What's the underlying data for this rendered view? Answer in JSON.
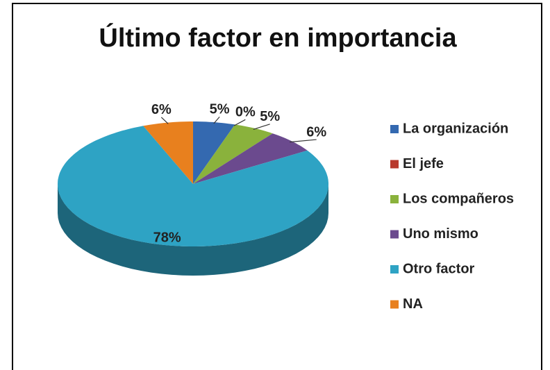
{
  "chart_data": {
    "type": "pie",
    "title": "Último factor en importancia",
    "categories": [
      "La organización",
      "El jefe",
      "Los compañeros",
      "Uno mismo",
      "Otro factor",
      "NA"
    ],
    "values": [
      5,
      0,
      5,
      6,
      78,
      6
    ],
    "value_labels": [
      "5%",
      "0%",
      "5%",
      "6%",
      "78%",
      "6%"
    ],
    "colors": [
      "#3469b0",
      "#b83a2e",
      "#8ab23c",
      "#6b4a8e",
      "#2ea3c4",
      "#e8801e"
    ],
    "legend": "right"
  }
}
